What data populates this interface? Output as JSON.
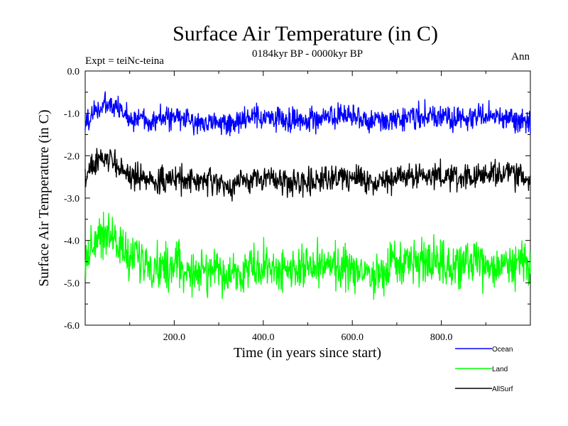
{
  "chart_data": {
    "type": "line",
    "title": "Surface Air Temperature (in C)",
    "subtitle": "0184kyr BP - 0000kyr BP",
    "left_label": "Expt = teiNc-teina",
    "right_label": "Ann",
    "xlabel": "Time (in years since start)",
    "ylabel": "Surface Air Temperature (in C)",
    "xlim": [
      0,
      1000
    ],
    "ylim": [
      -6.0,
      0.0
    ],
    "xticks": [
      200,
      400,
      600,
      800
    ],
    "xtick_labels": [
      "200.0",
      "400.0",
      "600.0",
      "800.0"
    ],
    "yticks": [
      0,
      -1,
      -2,
      -3,
      -4,
      -5,
      -6
    ],
    "ytick_labels": [
      "0.0",
      "-1.0",
      "-2.0",
      "-3.0",
      "-4.0",
      "-5.0",
      "-6.0"
    ],
    "series": [
      {
        "name": "Ocean",
        "color": "#0000ff",
        "x": [
          0,
          25,
          50,
          75,
          100,
          150,
          200,
          250,
          300,
          320,
          350,
          400,
          450,
          500,
          550,
          600,
          650,
          700,
          750,
          800,
          850,
          900,
          950,
          1000
        ],
        "values": [
          -1.25,
          -0.9,
          -0.8,
          -0.9,
          -1.1,
          -1.15,
          -1.1,
          -1.2,
          -1.2,
          -1.3,
          -1.15,
          -1.1,
          -1.15,
          -1.15,
          -1.1,
          -1.1,
          -1.2,
          -1.1,
          -1.05,
          -1.1,
          -1.15,
          -1.05,
          -1.1,
          -1.2
        ],
        "noise": 0.14
      },
      {
        "name": "Land",
        "color": "#00ff00",
        "x": [
          0,
          25,
          50,
          75,
          100,
          150,
          200,
          250,
          300,
          320,
          350,
          400,
          450,
          500,
          550,
          600,
          650,
          700,
          750,
          800,
          850,
          900,
          950,
          1000
        ],
        "values": [
          -4.5,
          -3.9,
          -3.8,
          -4.1,
          -4.4,
          -4.6,
          -4.6,
          -4.75,
          -4.7,
          -4.9,
          -4.7,
          -4.6,
          -4.7,
          -4.65,
          -4.6,
          -4.7,
          -4.8,
          -4.6,
          -4.5,
          -4.6,
          -4.6,
          -4.6,
          -4.55,
          -4.6
        ],
        "noise": 0.26
      },
      {
        "name": "AllSurf",
        "color": "#000000",
        "x": [
          0,
          25,
          50,
          75,
          100,
          150,
          200,
          250,
          300,
          320,
          350,
          400,
          450,
          500,
          550,
          600,
          650,
          700,
          750,
          800,
          850,
          900,
          950,
          1000
        ],
        "values": [
          -2.5,
          -2.15,
          -2.05,
          -2.25,
          -2.45,
          -2.6,
          -2.55,
          -2.6,
          -2.65,
          -2.8,
          -2.6,
          -2.5,
          -2.6,
          -2.6,
          -2.5,
          -2.5,
          -2.65,
          -2.5,
          -2.45,
          -2.5,
          -2.55,
          -2.45,
          -2.45,
          -2.55
        ],
        "noise": 0.15
      }
    ],
    "legend": {
      "position": "bottom-right",
      "entries": [
        {
          "name": "Ocean",
          "color": "#0000ff"
        },
        {
          "name": "Land",
          "color": "#00ff00"
        },
        {
          "name": "AllSurf",
          "color": "#000000"
        }
      ]
    }
  }
}
